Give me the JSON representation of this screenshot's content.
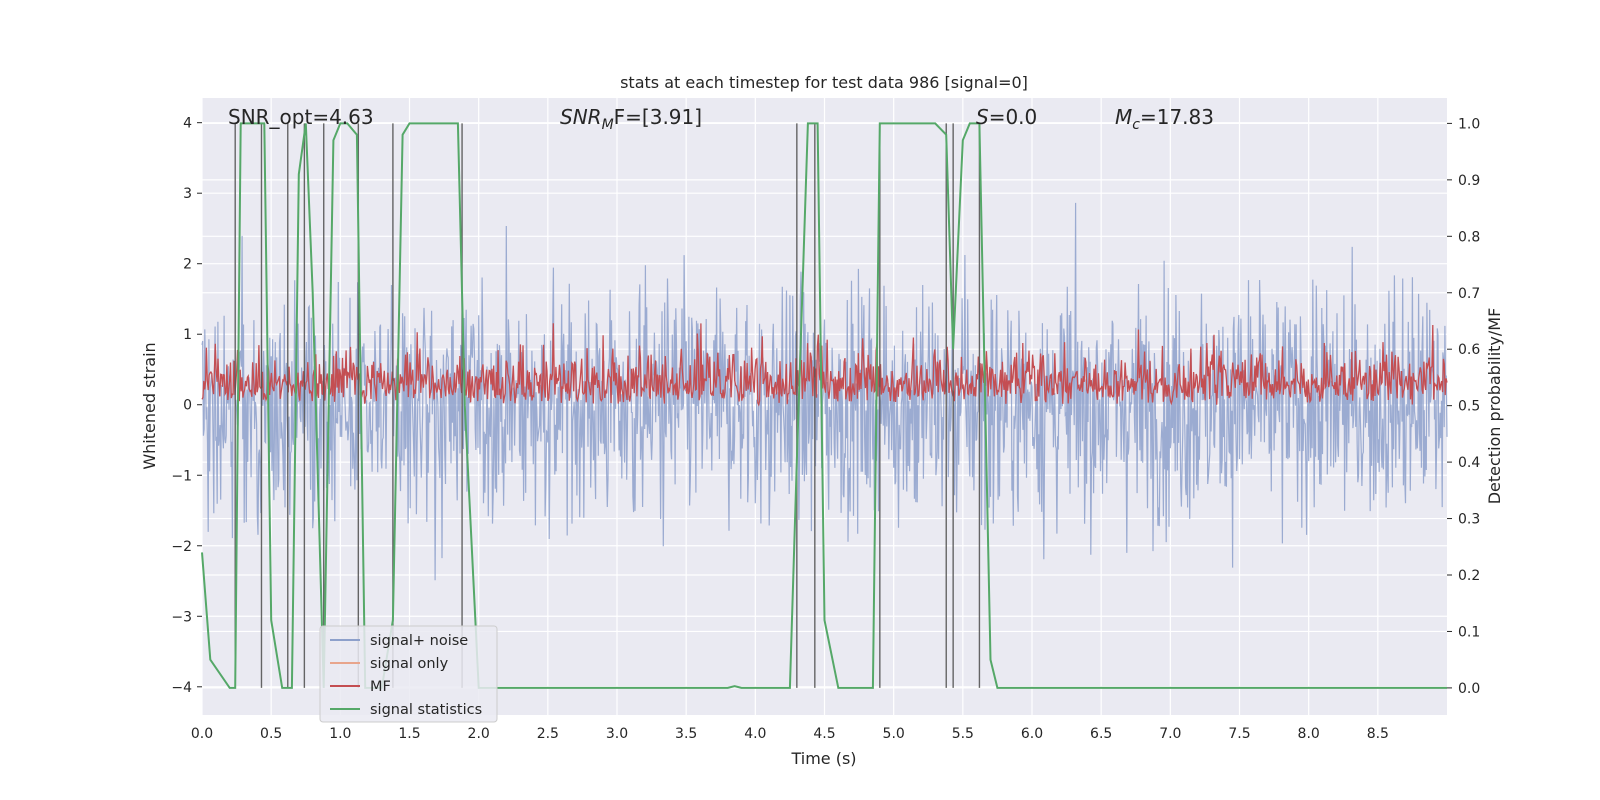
{
  "chart_data": {
    "type": "line",
    "title": "stats at each timestep for test data 986 [signal=0]",
    "xlabel": "Time (s)",
    "ylabel": "Whitened strain",
    "y2label": "Detection probability/MF",
    "xlim": [
      0.0,
      9.0
    ],
    "ylim": [
      -4.4,
      4.35
    ],
    "y2lim": [
      -0.048,
      1.045
    ],
    "xticks": [
      "0.0",
      "0.5",
      "1.0",
      "1.5",
      "2.0",
      "2.5",
      "3.0",
      "3.5",
      "4.0",
      "4.5",
      "5.0",
      "5.5",
      "6.0",
      "6.5",
      "7.0",
      "7.5",
      "8.0",
      "8.5"
    ],
    "yticks": [
      "4",
      "3",
      "2",
      "1",
      "0",
      "−1",
      "−2",
      "−3",
      "−4"
    ],
    "y2ticks": [
      "1.0",
      "0.9",
      "0.8",
      "0.7",
      "0.6",
      "0.5",
      "0.4",
      "0.3",
      "0.2",
      "0.1",
      "0.0"
    ],
    "grid": true,
    "legend_position": "lower-left",
    "annotations": {
      "snr_opt": "SNR_opt=4.63",
      "snr_mf_italic": "SNR",
      "snr_mf_sub": "M",
      "snr_mf_rest": "F=[3.91]",
      "s_italic": "S",
      "s_rest": "=0.0",
      "mc_italic": "M",
      "mc_sub": "c",
      "mc_rest": "=17.83"
    },
    "series": [
      {
        "name": "signal+ noise",
        "color": "#8da0cb",
        "description": "whitened strain, dense noise spanning roughly -3.5 to 3.8"
      },
      {
        "name": "signal only",
        "color": "#e8a58c",
        "values": []
      },
      {
        "name": "MF",
        "color": "#c44e52",
        "description": "matched filter, fluctuating between about 0.5 and 0.68 on the right axis"
      },
      {
        "name": "signal statistics",
        "color": "#55a868",
        "axis": "right",
        "x": [
          0.0,
          0.06,
          0.2,
          0.24,
          0.28,
          0.45,
          0.5,
          0.58,
          0.65,
          0.7,
          0.75,
          0.8,
          0.88,
          0.95,
          1.0,
          1.05,
          1.12,
          1.18,
          1.3,
          1.38,
          1.45,
          1.5,
          1.6,
          1.85,
          1.9,
          2.0,
          2.05,
          2.15,
          2.5,
          3.0,
          3.8,
          3.85,
          3.9,
          4.0,
          4.25,
          4.3,
          4.38,
          4.45,
          4.5,
          4.6,
          4.85,
          4.9,
          5.0,
          5.3,
          5.38,
          5.43,
          5.5,
          5.55,
          5.62,
          5.7,
          5.75,
          6.0,
          7.0,
          8.0,
          9.0
        ],
        "values": [
          0.24,
          0.05,
          0.0,
          0.0,
          1.0,
          1.0,
          0.12,
          0.0,
          0.0,
          0.91,
          1.0,
          0.7,
          0.0,
          0.97,
          1.0,
          1.0,
          0.98,
          0.0,
          0.0,
          0.12,
          0.98,
          1.0,
          1.0,
          1.0,
          0.5,
          0.0,
          0.0,
          0.0,
          0.0,
          0.0,
          0.0,
          0.003,
          0.0,
          0.0,
          0.0,
          0.4,
          1.0,
          1.0,
          0.12,
          0.0,
          0.0,
          1.0,
          1.0,
          1.0,
          0.98,
          0.6,
          0.97,
          1.0,
          1.0,
          0.05,
          0.0,
          0.0,
          0.0,
          0.0,
          0.0
        ]
      }
    ],
    "vertical_lines_x": [
      0.24,
      0.43,
      0.62,
      0.74,
      0.88,
      1.13,
      1.38,
      1.88,
      4.3,
      4.43,
      4.9,
      5.38,
      5.43,
      5.62
    ]
  }
}
